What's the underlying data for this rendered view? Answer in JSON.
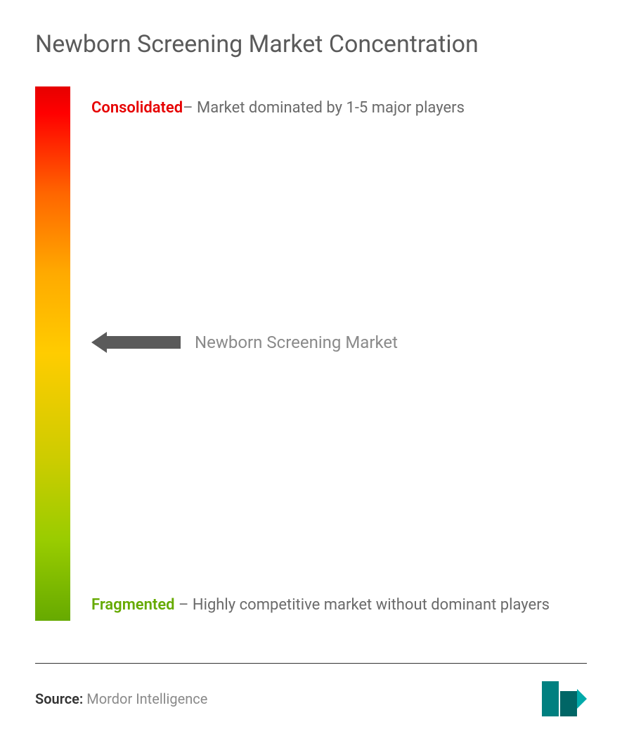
{
  "title": "Newborn Screening Market Concentration",
  "gradient": {
    "colors": [
      "#e60000",
      "#ff0000",
      "#ff6600",
      "#ffaa00",
      "#ffcc00",
      "#cccc00",
      "#99cc00",
      "#66aa00"
    ],
    "stops": [
      0,
      5,
      20,
      35,
      50,
      70,
      85,
      100
    ]
  },
  "topLabel": {
    "highlight": "Consolidated",
    "highlightColor": "#e60000",
    "text": "– Market dominated by 1-5 major players"
  },
  "middleLabel": {
    "text": "Newborn Screening Market",
    "arrowColor": "#5a5a5a",
    "positionPercent": 48
  },
  "bottomLabel": {
    "highlight": "Fragmented",
    "highlightColor": "#66aa00",
    "text": " – Highly competitive market without dominant players"
  },
  "footer": {
    "sourceLabel": "Source:",
    "sourceText": " Mordor Intelligence",
    "logoColors": {
      "bar1": "#008080",
      "bar2": "#006666",
      "accent": "#00aaaa"
    }
  },
  "styling": {
    "backgroundColor": "#ffffff",
    "titleColor": "#5a5a5a",
    "titleFontSize": 34,
    "labelFontSize": 22,
    "labelColor": "#6a6a6a",
    "middleLabelColor": "#8a8a8a",
    "middleLabelFontSize": 24,
    "sourceFontSize": 20,
    "sourceLabelColor": "#333333",
    "sourceTextColor": "#8a8a8a",
    "dividerColor": "#333333",
    "gradientBarWidth": 50,
    "chartHeight": 760
  }
}
